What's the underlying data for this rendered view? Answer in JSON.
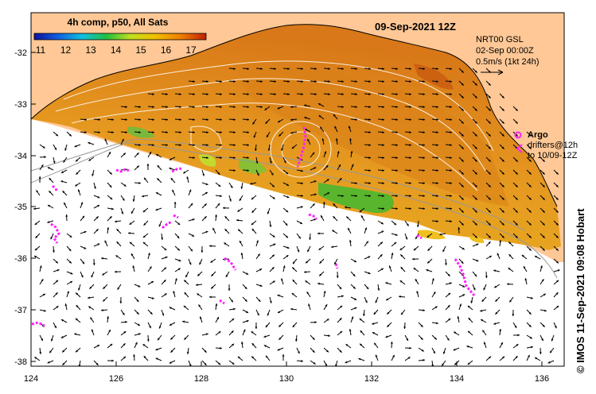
{
  "title": {
    "product": "4h comp, p50, All Sats",
    "date": "09-Sep-2021 12Z"
  },
  "colorbar": {
    "ticks": [
      "11",
      "12",
      "13",
      "14",
      "15",
      "16",
      "17"
    ],
    "colors": [
      "#1010a0",
      "#1060e0",
      "#10c0e0",
      "#20c040",
      "#c0e020",
      "#f0c000",
      "#f08000",
      "#c02000"
    ]
  },
  "info": {
    "line1": "NRT00 GSL",
    "line2": "02-Sep 00:00Z",
    "line3": "0.5m/s (1kt 24h)"
  },
  "legend": {
    "argo": "Argo",
    "drifters_line1": "drifters@12h",
    "drifters_line2": "to 10/09-12Z"
  },
  "axes": {
    "x_ticks": [
      "124",
      "126",
      "128",
      "130",
      "132",
      "134",
      "136"
    ],
    "y_ticks": [
      "-32",
      "-33",
      "-34",
      "-35",
      "-36",
      "-37",
      "-38"
    ]
  },
  "credit": "© IMOS 11-Sep-2021 09:08 Hobart",
  "colors": {
    "land": "#ffc896",
    "sst_warm": "#e08a1c",
    "sst_mid": "#e8a820",
    "sst_cool": "#40c040",
    "drifter": "#ff22ff",
    "arrow": "#000000",
    "contour": "#ffffff"
  }
}
